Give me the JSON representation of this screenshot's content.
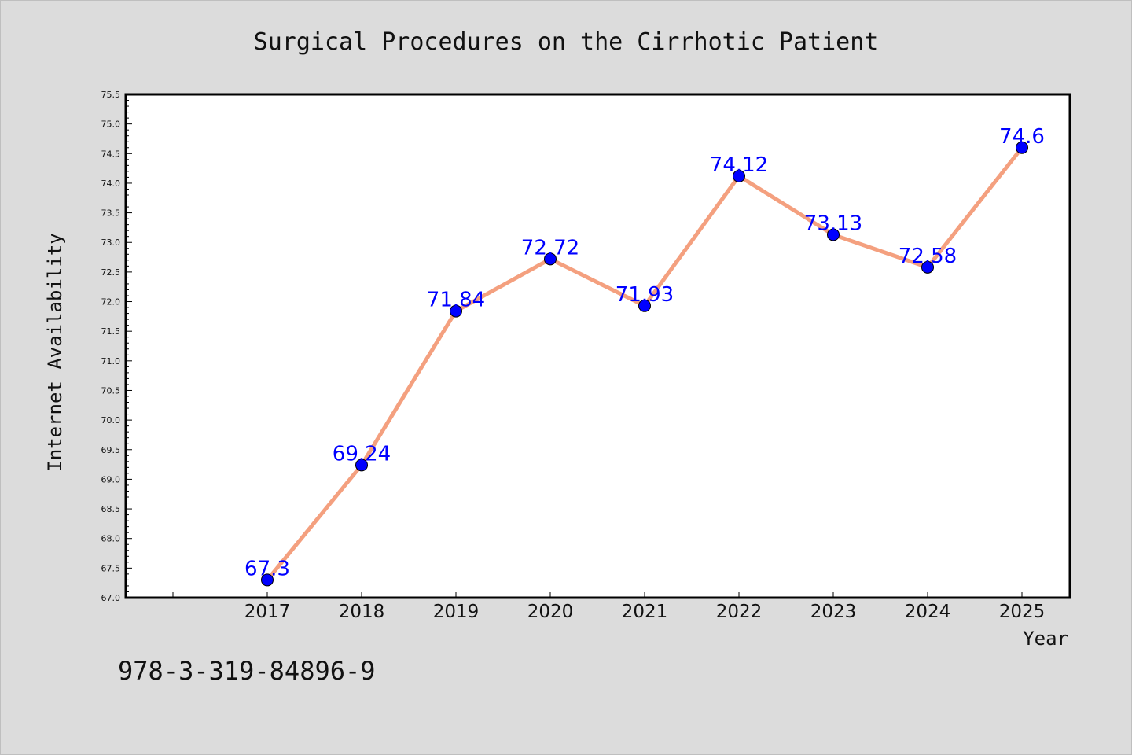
{
  "chart_data": {
    "type": "line",
    "title": "Surgical Procedures on the Cirrhotic Patient",
    "xlabel": "Year",
    "ylabel": "Internet Availability",
    "categories": [
      "2017",
      "2018",
      "2019",
      "2020",
      "2021",
      "2022",
      "2023",
      "2024",
      "2025"
    ],
    "values": [
      67.3,
      69.24,
      71.84,
      72.72,
      71.93,
      74.12,
      73.13,
      72.58,
      74.6
    ],
    "data_labels": [
      "67.3",
      "69.24",
      "71.84",
      "72.72",
      "71.93",
      "74.12",
      "73.13",
      "72.58",
      "74.6"
    ],
    "ylim": [
      67.0,
      75.5
    ],
    "yticks": [
      "67.0",
      "67.5",
      "68.0",
      "68.5",
      "69.0",
      "69.5",
      "70.0",
      "70.5",
      "71.0",
      "71.5",
      "72.0",
      "72.5",
      "73.0",
      "73.5",
      "74.0",
      "74.5",
      "75.0",
      "75.5"
    ],
    "grid": false,
    "colors": {
      "line": "#f4a07f",
      "marker": "#0000ff",
      "data_label": "#0000ff",
      "background": "#dcdcdc",
      "plot_background": "#ffffff"
    }
  },
  "footer": {
    "isbn": "978-3-319-84896-9"
  }
}
